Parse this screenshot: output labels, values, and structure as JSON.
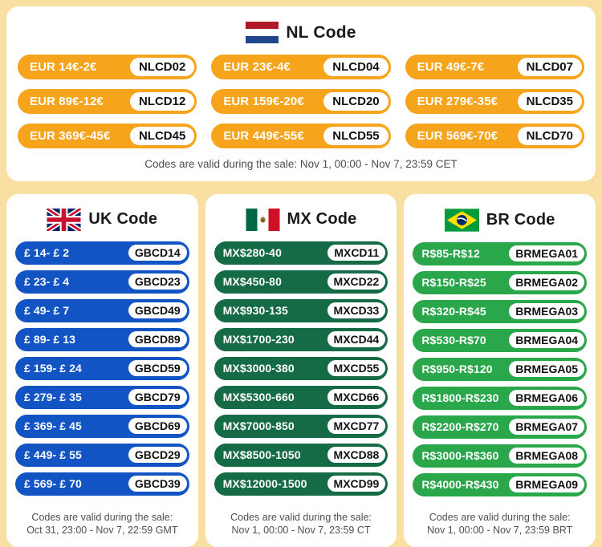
{
  "colors": {
    "background": "#FADFA2",
    "panel": "#FFFFFF",
    "nl_accent": "#F6A41C",
    "uk_accent": "#1254C4",
    "mx_accent": "#156B45",
    "br_accent": "#2AA64B",
    "badge_bg": "#FFFFFF",
    "badge_text": "#111111",
    "note_text": "#4F4F4F"
  },
  "nl": {
    "title": "NL Code",
    "flag_icon": "netherlands-flag",
    "coupons": [
      {
        "discount": "EUR 14€-2€",
        "code": "NLCD02"
      },
      {
        "discount": "EUR 23€-4€",
        "code": "NLCD04"
      },
      {
        "discount": "EUR 49€-7€",
        "code": "NLCD07"
      },
      {
        "discount": "EUR 89€-12€",
        "code": "NLCD12"
      },
      {
        "discount": "EUR 159€-20€",
        "code": "NLCD20"
      },
      {
        "discount": "EUR 279€-35€",
        "code": "NLCD35"
      },
      {
        "discount": "EUR 369€-45€",
        "code": "NLCD45"
      },
      {
        "discount": "EUR 449€-55€",
        "code": "NLCD55"
      },
      {
        "discount": "EUR 569€-70€",
        "code": "NLCD70"
      }
    ],
    "validity": "Codes are valid during the sale: Nov 1, 00:00 - Nov 7, 23:59 CET"
  },
  "uk": {
    "title": "UK Code",
    "flag_icon": "uk-flag",
    "coupons": [
      {
        "discount": "£ 14- £ 2",
        "code": "GBCD14"
      },
      {
        "discount": "£ 23- £ 4",
        "code": "GBCD23"
      },
      {
        "discount": "£ 49- £ 7",
        "code": "GBCD49"
      },
      {
        "discount": "£ 89- £ 13",
        "code": "GBCD89"
      },
      {
        "discount": "£ 159- £ 24",
        "code": "GBCD59"
      },
      {
        "discount": "£ 279- £ 35",
        "code": "GBCD79"
      },
      {
        "discount": "£ 369- £ 45",
        "code": "GBCD69"
      },
      {
        "discount": "£ 449- £ 55",
        "code": "GBCD29"
      },
      {
        "discount": "£ 569- £ 70",
        "code": "GBCD39"
      }
    ],
    "validity_line1": "Codes are valid during the sale:",
    "validity_line2": "Oct 31, 23:00 - Nov 7, 22:59 GMT"
  },
  "mx": {
    "title": "MX Code",
    "flag_icon": "mexico-flag",
    "coupons": [
      {
        "discount": "MX$280-40",
        "code": "MXCD11"
      },
      {
        "discount": "MX$450-80",
        "code": "MXCD22"
      },
      {
        "discount": "MX$930-135",
        "code": "MXCD33"
      },
      {
        "discount": "MX$1700-230",
        "code": "MXCD44"
      },
      {
        "discount": "MX$3000-380",
        "code": "MXCD55"
      },
      {
        "discount": "MX$5300-660",
        "code": "MXCD66"
      },
      {
        "discount": "MX$7000-850",
        "code": "MXCD77"
      },
      {
        "discount": "MX$8500-1050",
        "code": "MXCD88"
      },
      {
        "discount": "MX$12000-1500",
        "code": "MXCD99"
      }
    ],
    "validity_line1": "Codes are valid during the sale:",
    "validity_line2": "Nov 1, 00:00 - Nov 7, 23:59 CT"
  },
  "br": {
    "title": "BR Code",
    "flag_icon": "brazil-flag",
    "coupons": [
      {
        "discount": "R$85-R$12",
        "code": "BRMEGA01"
      },
      {
        "discount": "R$150-R$25",
        "code": "BRMEGA02"
      },
      {
        "discount": "R$320-R$45",
        "code": "BRMEGA03"
      },
      {
        "discount": "R$530-R$70",
        "code": "BRMEGA04"
      },
      {
        "discount": "R$950-R$120",
        "code": "BRMEGA05"
      },
      {
        "discount": "R$1800-R$230",
        "code": "BRMEGA06"
      },
      {
        "discount": "R$2200-R$270",
        "code": "BRMEGA07"
      },
      {
        "discount": "R$3000-R$360",
        "code": "BRMEGA08"
      },
      {
        "discount": "R$4000-R$430",
        "code": "BRMEGA09"
      }
    ],
    "validity_line1": "Codes are valid during the sale:",
    "validity_line2": "Nov 1, 00:00 - Nov 7, 23:59 BRT"
  }
}
